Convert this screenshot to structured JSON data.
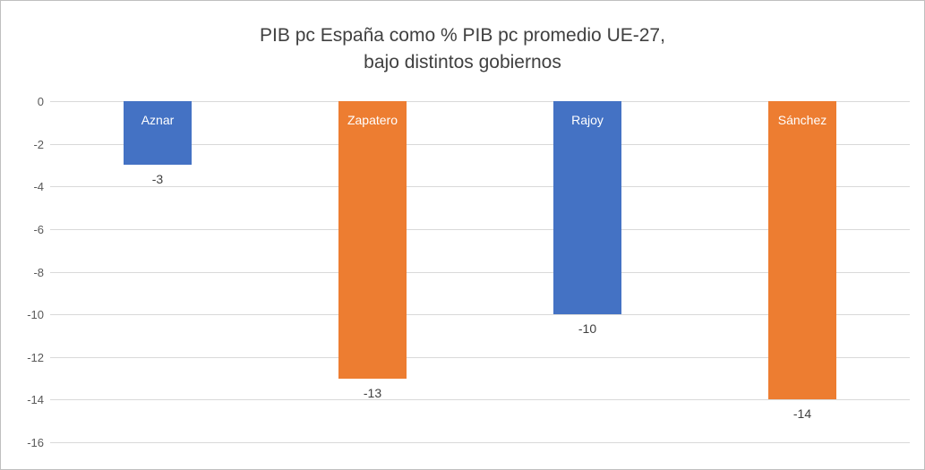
{
  "chart_data": {
    "type": "bar",
    "title": "PIB pc España como % PIB pc promedio UE-27, bajo distintos gobiernos",
    "title_lines": [
      "PIB pc España como % PIB pc promedio UE-27,",
      "bajo distintos gobiernos"
    ],
    "categories": [
      "Aznar",
      "Zapatero",
      "Rajoy",
      "Sánchez"
    ],
    "values": [
      -3,
      -13,
      -10,
      -14
    ],
    "value_labels": [
      "-3",
      "-13",
      "-10",
      "-14"
    ],
    "bar_colors": [
      "#4472C4",
      "#ED7D31",
      "#4472C4",
      "#ED7D31"
    ],
    "xlabel": "",
    "ylabel": "",
    "ylim": [
      -16,
      0
    ],
    "yticks": [
      0,
      -2,
      -4,
      -6,
      -8,
      -10,
      -12,
      -14,
      -16
    ],
    "ytick_labels": [
      "0",
      "-2",
      "-4",
      "-6",
      "-8",
      "-10",
      "-12",
      "-14",
      "-16"
    ],
    "grid": true,
    "legend": "none"
  },
  "colors": {
    "blue": "#4472C4",
    "orange": "#ED7D31",
    "gridline": "#d9d9d9",
    "title_text": "#404040",
    "tick_text": "#595959",
    "border": "#bfbfbf"
  }
}
